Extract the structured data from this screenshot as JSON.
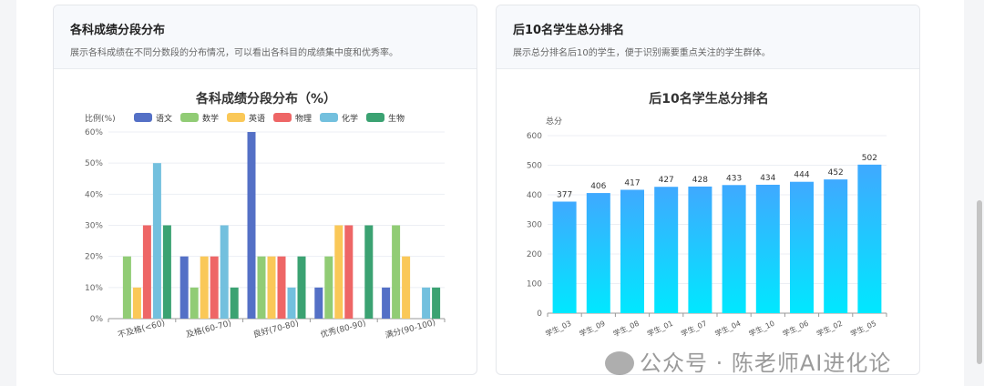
{
  "left_card": {
    "title": "各科成绩分段分布",
    "desc": "展示各科成绩在不同分数段的分布情况，可以看出各科目的成绩集中度和优秀率。"
  },
  "right_card": {
    "title": "后10名学生总分排名",
    "desc": "展示总分排名后10的学生，便于识别需要重点关注的学生群体。"
  },
  "watermark": "公众号 · 陈老师AI进化论",
  "chart_data": [
    {
      "type": "bar",
      "title": "各科成绩分段分布（%）",
      "ylabel": "比例(%)",
      "ylim": [
        0,
        60
      ],
      "yticks": [
        0,
        10,
        20,
        30,
        40,
        50,
        60
      ],
      "ytick_suffix": "%",
      "legend": "top",
      "categories": [
        "不及格(<60)",
        "及格(60-70)",
        "良好(70-80)",
        "优秀(80-90)",
        "满分(90-100)"
      ],
      "series": [
        {
          "name": "语文",
          "color": "#5470c6",
          "values": [
            0,
            20,
            60,
            10,
            10
          ]
        },
        {
          "name": "数学",
          "color": "#91cc75",
          "values": [
            20,
            10,
            20,
            20,
            30
          ]
        },
        {
          "name": "英语",
          "color": "#fac858",
          "values": [
            10,
            20,
            20,
            30,
            20
          ]
        },
        {
          "name": "物理",
          "color": "#ee6666",
          "values": [
            30,
            20,
            20,
            30,
            0
          ]
        },
        {
          "name": "化学",
          "color": "#73c0de",
          "values": [
            50,
            30,
            10,
            0,
            10
          ]
        },
        {
          "name": "生物",
          "color": "#3ba272",
          "values": [
            30,
            10,
            20,
            30,
            10
          ]
        }
      ]
    },
    {
      "type": "bar",
      "title": "后10名学生总分排名",
      "ylabel": "总分",
      "ylim": [
        0,
        600
      ],
      "yticks": [
        0,
        100,
        200,
        300,
        400,
        500,
        600
      ],
      "categories": [
        "学生_03",
        "学生_09",
        "学生_08",
        "学生_01",
        "学生_07",
        "学生_04",
        "学生_10",
        "学生_06",
        "学生_02",
        "学生_05"
      ],
      "values": [
        377,
        406,
        417,
        427,
        428,
        433,
        434,
        444,
        452,
        502
      ],
      "gradient": [
        "#3fa9ff",
        "#00e8ff"
      ]
    }
  ]
}
